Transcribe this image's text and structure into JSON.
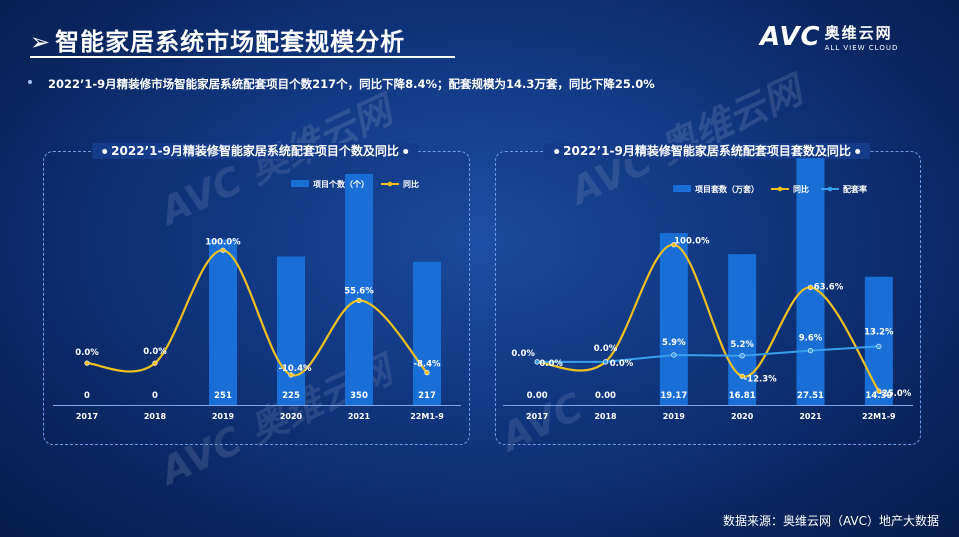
{
  "header": {
    "title": "智能家居系统市场配套规模分析",
    "summary": "2022’1-9月精装修市场智能家居系统配套项目个数217个，同比下降8.4%；配套规模为14.3万套，同比下降25.0%"
  },
  "logo": {
    "mark": "AVC",
    "cn": "奥维云网",
    "en": "ALL VIEW CLOUD"
  },
  "watermark": {
    "mark": "AVC",
    "cn": "奥维云网",
    "en": "ALL VIEW CLOUD"
  },
  "source": "数据来源：奥维云网（AVC）地产大数据",
  "colors": {
    "bar": "#1a6fd6",
    "line_yoy": "#f0c020",
    "line_rate": "#3aa0ee"
  },
  "chart_data": [
    {
      "type": "bar",
      "title": "2022’1-9月精装修智能家居系统配套项目个数及同比",
      "categories": [
        "2017",
        "2018",
        "2019",
        "2020",
        "2021",
        "22M1-9"
      ],
      "series": [
        {
          "name": "项目个数（个）",
          "type": "bar",
          "values": [
            0,
            0,
            251,
            225,
            350,
            217
          ],
          "labels": [
            "0",
            "0",
            "251",
            "225",
            "350",
            "217"
          ]
        },
        {
          "name": "同比",
          "type": "line",
          "axis": "secondary",
          "values": [
            0.0,
            0.0,
            100.0,
            -10.4,
            55.6,
            -8.4
          ],
          "labels": [
            "0.0%",
            "0.0%",
            "100.0%",
            "-10.4%",
            "55.6%",
            "-8.4%"
          ]
        }
      ],
      "ylim": [
        0,
        400
      ],
      "y2lim": [
        -30,
        110
      ],
      "legend": "top-right"
    },
    {
      "type": "bar",
      "title": "2022’1-9月精装修智能家居系统配套项目套数及同比",
      "categories": [
        "2017",
        "2018",
        "2019",
        "2020",
        "2021",
        "22M1-9"
      ],
      "series": [
        {
          "name": "项目套数（万套）",
          "type": "bar",
          "values": [
            0.0,
            0.0,
            19.17,
            16.81,
            27.51,
            14.3
          ],
          "labels": [
            "0.00",
            "0.00",
            "19.17",
            "16.81",
            "27.51",
            "14.30"
          ]
        },
        {
          "name": "同比",
          "type": "line",
          "axis": "secondary",
          "values": [
            0.0,
            0.0,
            100.0,
            -12.3,
            63.6,
            -25.0
          ],
          "labels": [
            "0.0%",
            "0.0%",
            "100.0%",
            "-12.3%",
            "63.6%",
            "-25.0%"
          ]
        },
        {
          "name": "配套率",
          "type": "line",
          "axis": "secondary",
          "values": [
            0.0,
            0.0,
            5.9,
            5.2,
            9.6,
            13.2
          ],
          "labels": [
            "0.0%",
            "0.0%",
            "5.9%",
            "5.2%",
            "9.6%",
            "13.2%"
          ]
        }
      ],
      "ylim": [
        0,
        32
      ],
      "y2lim": [
        -30,
        110
      ],
      "legend": "top-right"
    }
  ]
}
